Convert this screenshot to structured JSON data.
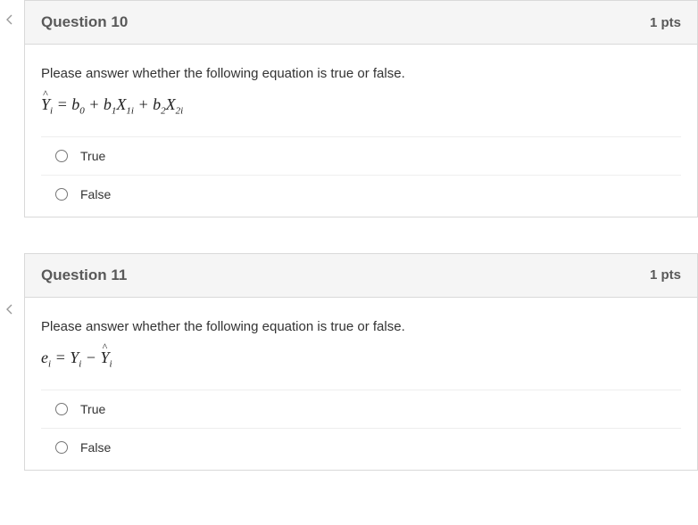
{
  "questions": [
    {
      "header": {
        "title": "Question 10",
        "points": "1 pts"
      },
      "prompt": "Please answer whether the following equation is true or false.",
      "equation_html": "<span class='hat-wrap'>Y</span><span class='sub'>i</span> = b<span class='sub'>0</span> + b<span class='sub'>1</span>X<span class='sub'>1i</span> + b<span class='sub'>2</span>X<span class='sub'>2i</span>",
      "options": [
        {
          "label": "True",
          "name": "true-option"
        },
        {
          "label": "False",
          "name": "false-option"
        }
      ]
    },
    {
      "header": {
        "title": "Question 11",
        "points": "1 pts"
      },
      "prompt": "Please answer whether the following equation is true or false.",
      "equation_html": "e<span class='sub'>i</span> = Y<span class='sub'>i</span> &minus; <span class='hat-wrap'>Y</span><span class='sub'>i</span>",
      "options": [
        {
          "label": "True",
          "name": "true-option"
        },
        {
          "label": "False",
          "name": "false-option"
        }
      ]
    }
  ],
  "colors": {
    "border": "#d9d9d9",
    "header_bg": "#f5f5f5",
    "title_color": "#595959",
    "text_color": "#333333",
    "divider": "#eeeeee"
  }
}
